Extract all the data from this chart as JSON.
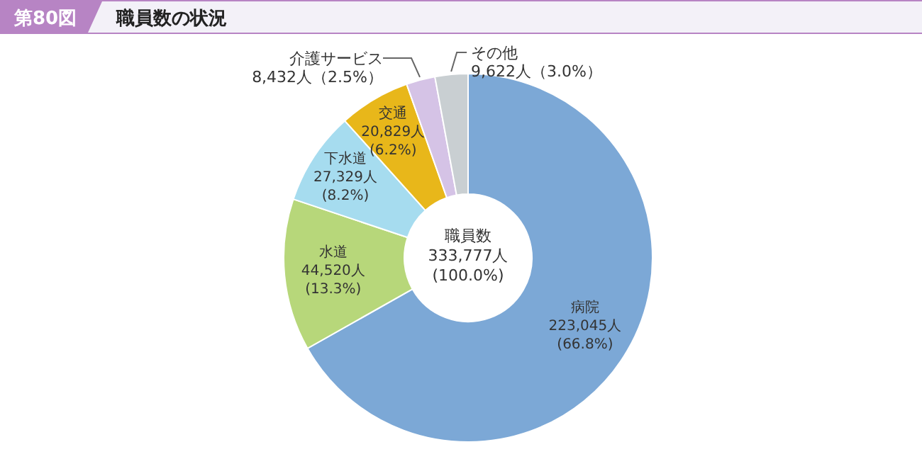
{
  "chart_data": {
    "type": "donut",
    "title": "職員数の状況",
    "annotations": [
      "第80図",
      "職員数\n333,777人\n(100.0%)"
    ],
    "categories": [
      "病院",
      "水道",
      "下水道",
      "交通",
      "介護サービス",
      "その他"
    ],
    "values": [
      223045,
      44520,
      27329,
      20829,
      8432,
      9622
    ],
    "colors": [
      "#7ca8d6",
      "#b7d77a",
      "#a6dcef",
      "#e8b71a",
      "#d5c3e6",
      "#c9cfd2"
    ],
    "value_labels": [
      "223,045人\n(66.8%)",
      "44,520人\n(13.3%)",
      "27,329人\n(8.2%)",
      "20,829人\n(6.2%)",
      "8,432人（2.5%）",
      "9,622人（3.0%）"
    ]
  }
}
